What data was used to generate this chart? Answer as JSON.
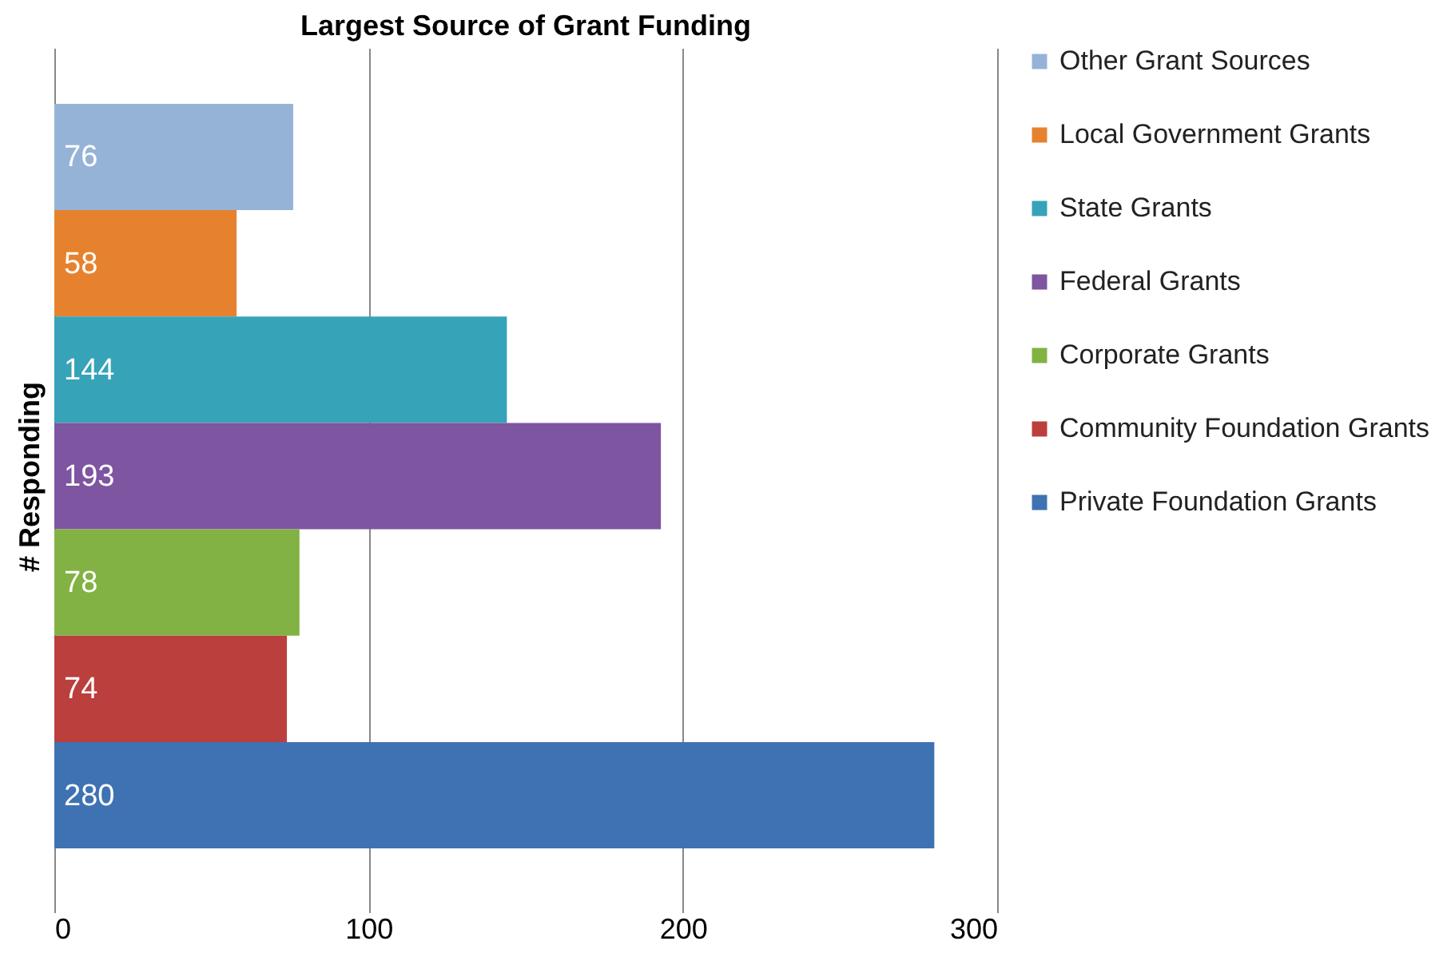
{
  "chart_data": {
    "type": "bar",
    "orientation": "horizontal",
    "title": "Largest Source of Grant Funding",
    "ylabel": "# Responding",
    "categories": [
      null
    ],
    "series": [
      {
        "name": "Other Grant Sources",
        "color": "#95b3d7",
        "values": [
          76
        ]
      },
      {
        "name": "Local Government Grants",
        "color": "#e6822e",
        "values": [
          58
        ]
      },
      {
        "name": "State Grants",
        "color": "#36a3b8",
        "values": [
          144
        ]
      },
      {
        "name": "Federal Grants",
        "color": "#7d55a0",
        "values": [
          193
        ]
      },
      {
        "name": "Corporate Grants",
        "color": "#83b244",
        "values": [
          78
        ]
      },
      {
        "name": "Community Foundation Grants",
        "color": "#bb3f3d",
        "values": [
          74
        ]
      },
      {
        "name": "Private Foundation Grants",
        "color": "#3f72b2",
        "values": [
          280
        ]
      }
    ],
    "xlim": [
      0,
      300
    ],
    "xticks": [
      0,
      100,
      200,
      300
    ],
    "grid": "x",
    "legend": "right",
    "data_labels": true
  }
}
